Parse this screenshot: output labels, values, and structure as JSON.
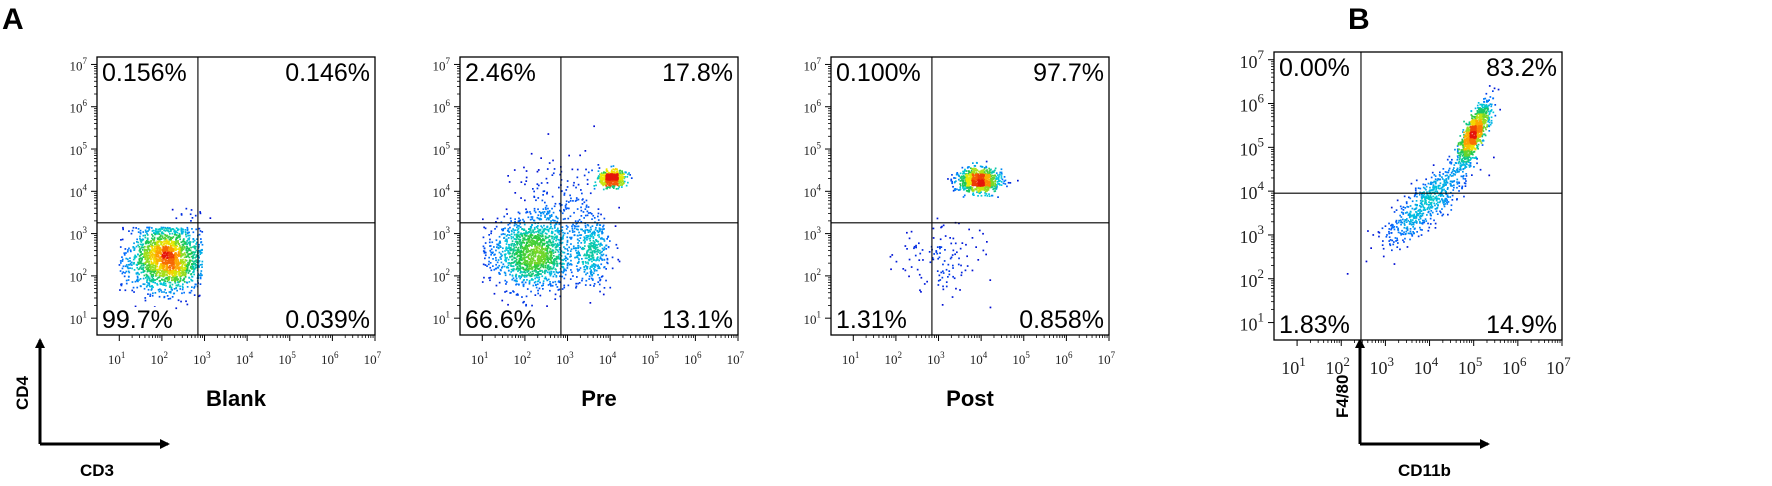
{
  "figure": {
    "panel_a_letter": "A",
    "panel_b_letter": "B",
    "panel_a_x_axis": "CD3",
    "panel_a_y_axis": "CD4",
    "panel_b_x_axis": "CD11b",
    "panel_b_y_axis": "F4/80"
  },
  "chart_data": [
    {
      "type": "scatter",
      "panel": "A",
      "title": "Blank",
      "xlabel": "CD3",
      "ylabel": "CD4",
      "x_scale": "log",
      "y_scale": "log",
      "xlim": [
        3,
        10000000.0
      ],
      "ylim": [
        4,
        15000000.0
      ],
      "x_ticks": [
        "10^1",
        "10^2",
        "10^3",
        "10^4",
        "10^5",
        "10^6",
        "10^7"
      ],
      "y_ticks": [
        "10^1",
        "10^2",
        "10^3",
        "10^4",
        "10^5",
        "10^6",
        "10^7"
      ],
      "gates": {
        "x": 700,
        "y": 1800
      },
      "quadrants": {
        "top_left": "0.156%",
        "top_right": "0.146%",
        "bottom_left": "99.7%",
        "bottom_right": "0.039%"
      },
      "populations": [
        {
          "n": 1700,
          "center_log10": [
            2.1,
            2.4
          ],
          "spread_log10": [
            0.42,
            0.38
          ],
          "min_log10": [
            1.0,
            1.0
          ],
          "max_log10": [
            2.95,
            3.15
          ]
        },
        {
          "n": 14,
          "center_log10": [
            2.5,
            3.4
          ],
          "spread_log10": [
            0.25,
            0.15
          ]
        }
      ]
    },
    {
      "type": "scatter",
      "panel": "A",
      "title": "Pre",
      "xlabel": "CD3",
      "ylabel": "CD4",
      "x_scale": "log",
      "y_scale": "log",
      "xlim": [
        3,
        10000000.0
      ],
      "ylim": [
        4,
        15000000.0
      ],
      "x_ticks": [
        "10^1",
        "10^2",
        "10^3",
        "10^4",
        "10^5",
        "10^6",
        "10^7"
      ],
      "y_ticks": [
        "10^1",
        "10^2",
        "10^3",
        "10^4",
        "10^5",
        "10^6",
        "10^7"
      ],
      "gates": {
        "x": 700,
        "y": 1800
      },
      "quadrants": {
        "top_left": "2.46%",
        "top_right": "17.8%",
        "bottom_left": "66.6%",
        "bottom_right": "13.1%"
      },
      "populations": [
        {
          "n": 1400,
          "center_log10": [
            2.2,
            2.55
          ],
          "spread_log10": [
            0.48,
            0.42
          ],
          "min_log10": [
            1.0,
            1.0
          ],
          "max_log10": [
            3.3,
            3.6
          ]
        },
        {
          "n": 450,
          "center_log10": [
            4.05,
            4.3
          ],
          "spread_log10": [
            0.16,
            0.1
          ]
        },
        {
          "n": 350,
          "center_log10": [
            3.6,
            2.55
          ],
          "spread_log10": [
            0.2,
            0.4
          ],
          "min_log10": [
            3.0,
            0.9
          ]
        },
        {
          "n": 200,
          "center_log10": [
            2.8,
            3.6
          ],
          "spread_log10": [
            0.55,
            0.55
          ]
        }
      ]
    },
    {
      "type": "scatter",
      "panel": "A",
      "title": "Post",
      "xlabel": "CD3",
      "ylabel": "CD4",
      "x_scale": "log",
      "y_scale": "log",
      "xlim": [
        3,
        10000000.0
      ],
      "ylim": [
        4,
        15000000.0
      ],
      "x_ticks": [
        "10^1",
        "10^2",
        "10^3",
        "10^4",
        "10^5",
        "10^6",
        "10^7"
      ],
      "y_ticks": [
        "10^1",
        "10^2",
        "10^3",
        "10^4",
        "10^5",
        "10^6",
        "10^7"
      ],
      "gates": {
        "x": 700,
        "y": 1800
      },
      "quadrants": {
        "top_left": "0.100%",
        "top_right": "97.7%",
        "bottom_left": "1.31%",
        "bottom_right": "0.858%"
      },
      "populations": [
        {
          "n": 800,
          "center_log10": [
            3.95,
            4.25
          ],
          "spread_log10": [
            0.25,
            0.14
          ]
        },
        {
          "n": 120,
          "center_log10": [
            3.0,
            2.5
          ],
          "spread_log10": [
            0.55,
            0.45
          ]
        }
      ]
    },
    {
      "type": "scatter",
      "panel": "B",
      "title": "",
      "xlabel": "CD11b",
      "ylabel": "F4/80",
      "x_scale": "log",
      "y_scale": "log",
      "xlim": [
        3,
        10000000.0
      ],
      "ylim": [
        4,
        15000000.0
      ],
      "x_ticks": [
        "10^1",
        "10^2",
        "10^3",
        "10^4",
        "10^5",
        "10^6",
        "10^7"
      ],
      "y_ticks": [
        "10^1",
        "10^2",
        "10^3",
        "10^4",
        "10^5",
        "10^6",
        "10^7"
      ],
      "gates": {
        "x": 280,
        "y": 9000
      },
      "quadrants": {
        "top_left": "0.00%",
        "top_right": "83.2%",
        "bottom_left": "1.83%",
        "bottom_right": "14.9%"
      },
      "populations": [
        {
          "n": 1000,
          "center_log10": [
            5.0,
            5.3
          ],
          "spread_log10": [
            0.18,
            0.35
          ],
          "correlation": 0.8
        },
        {
          "n": 600,
          "center_log10": [
            3.9,
            3.7
          ],
          "spread_log10": [
            0.5,
            0.5
          ],
          "correlation": 0.85
        }
      ]
    }
  ]
}
